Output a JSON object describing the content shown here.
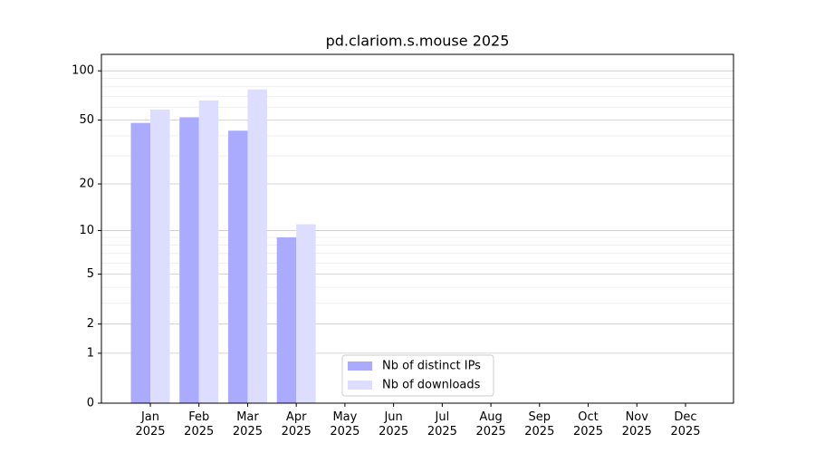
{
  "chart_data": {
    "type": "bar",
    "title": "pd.clariom.s.mouse 2025",
    "categories": [
      "Jan\n2025",
      "Feb\n2025",
      "Mar\n2025",
      "Apr\n2025",
      "May\n2025",
      "Jun\n2025",
      "Jul\n2025",
      "Aug\n2025",
      "Sep\n2025",
      "Oct\n2025",
      "Nov\n2025",
      "Dec\n2025"
    ],
    "series": [
      {
        "name": "Nb of distinct IPs",
        "color": "#aaaaff",
        "values": [
          48,
          52,
          43,
          9,
          null,
          null,
          null,
          null,
          null,
          null,
          null,
          null
        ]
      },
      {
        "name": "Nb of downloads",
        "color": "#ddddff",
        "values": [
          58,
          66,
          77,
          11,
          null,
          null,
          null,
          null,
          null,
          null,
          null,
          null
        ]
      }
    ],
    "yscale": "log1p",
    "ylim": [
      0,
      126
    ],
    "yticks": [
      0,
      1,
      2,
      5,
      10,
      20,
      50,
      100
    ],
    "minor_yticks": [
      3,
      4,
      6,
      7,
      8,
      9,
      30,
      40,
      60,
      70,
      80,
      90
    ],
    "grid": true,
    "legend": "lower center"
  }
}
